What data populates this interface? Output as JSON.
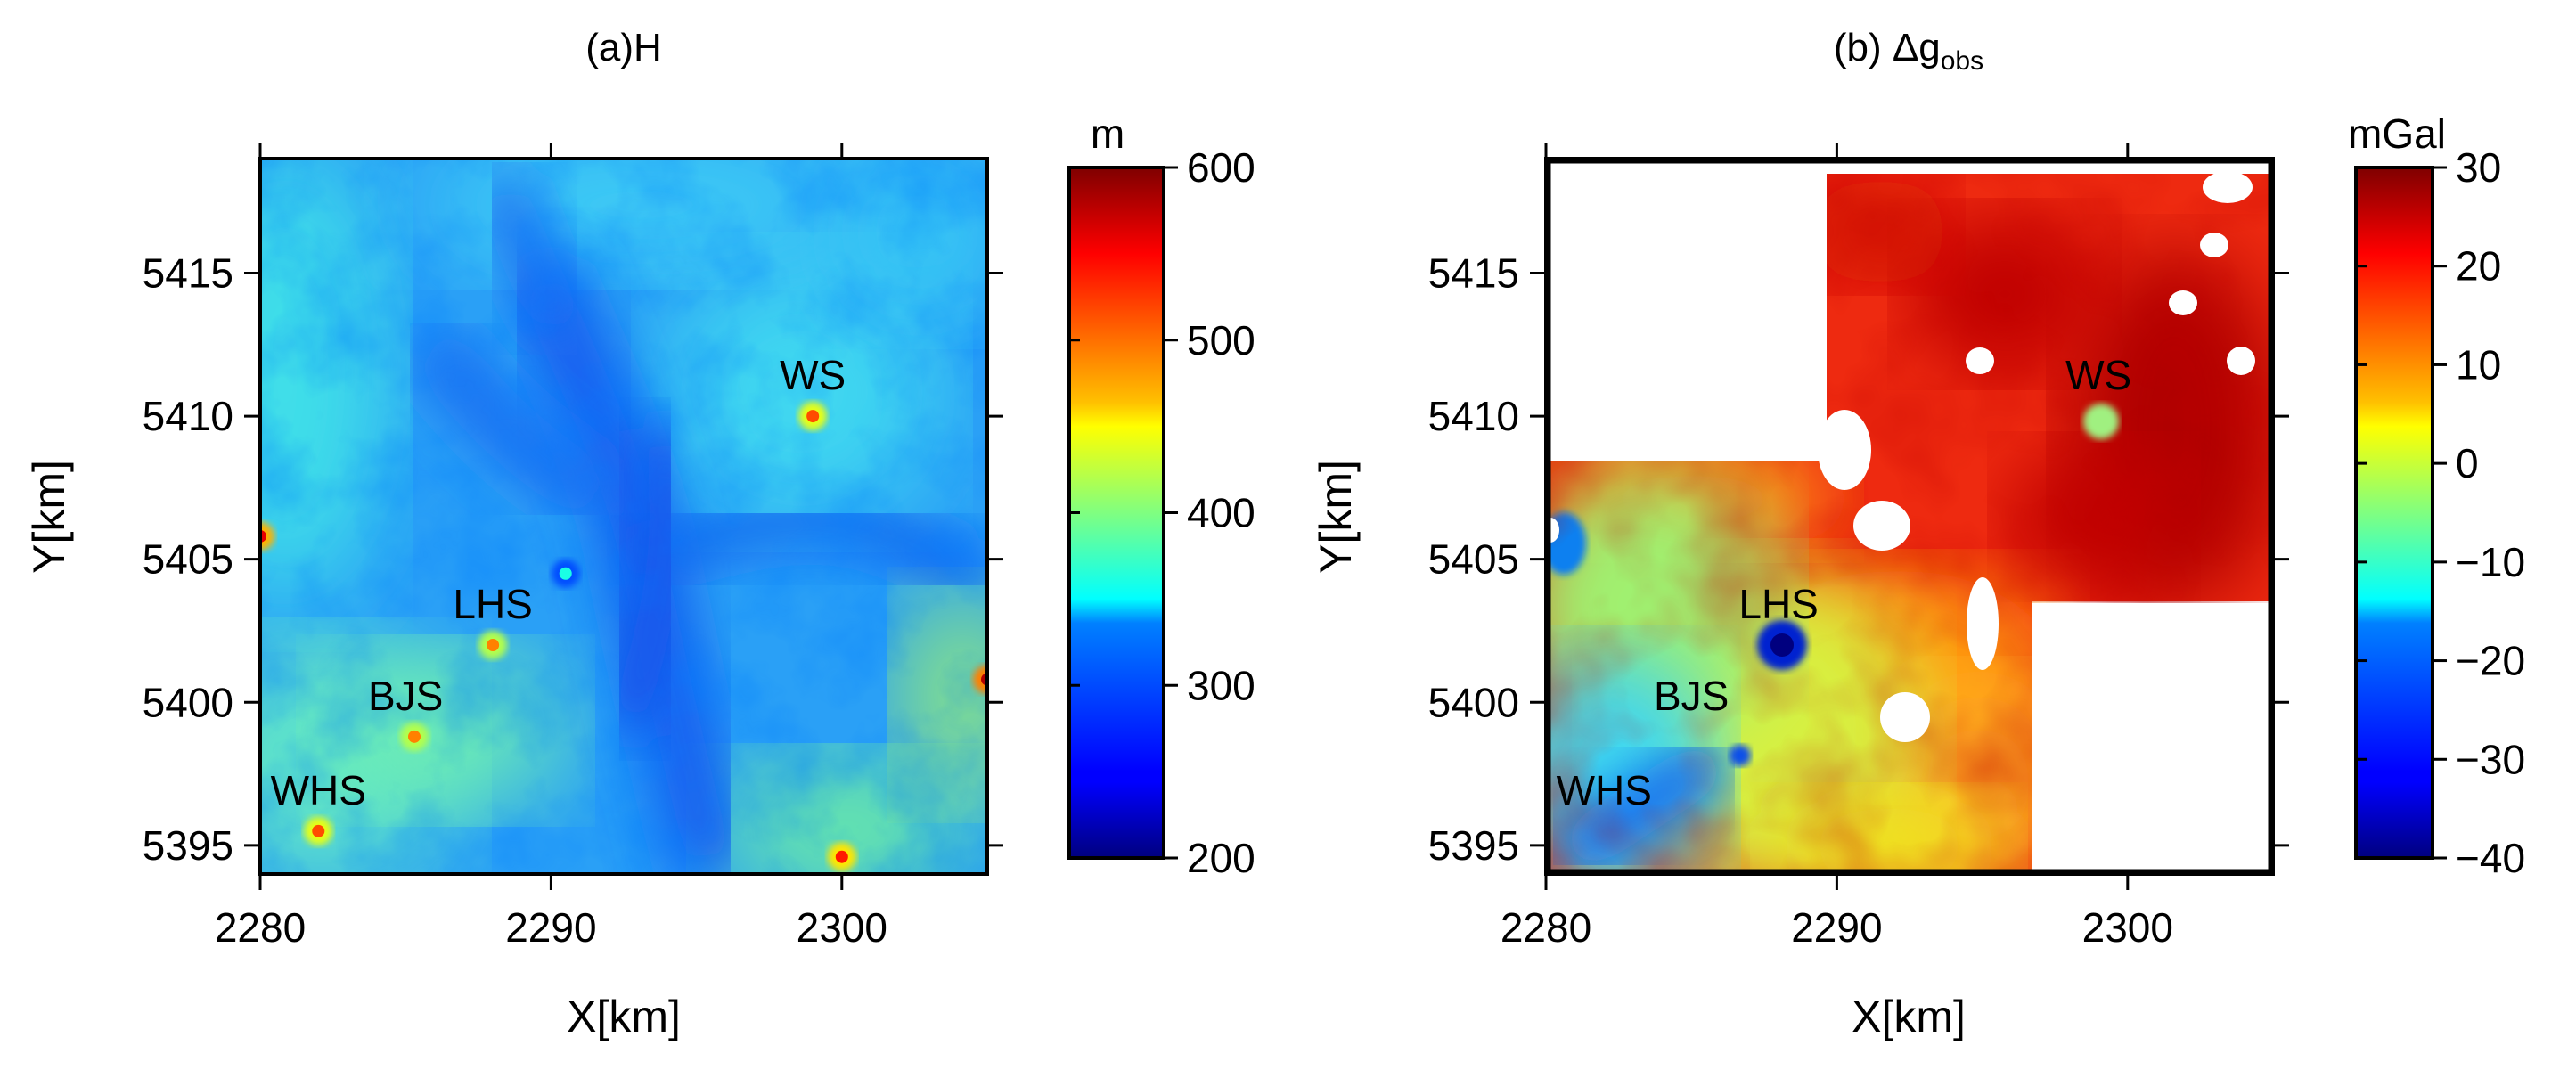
{
  "chart_data": [
    {
      "type": "heatmap",
      "panel_label": "(a)",
      "title": "H",
      "xlabel": "X[km]",
      "ylabel": "Y[km]",
      "xlim": [
        2280,
        2305
      ],
      "ylim": [
        5394,
        5419
      ],
      "xticks": [
        2280,
        2290,
        2300
      ],
      "yticks": [
        5395,
        5400,
        5405,
        5410,
        5415
      ],
      "colorbar": {
        "unit": "m",
        "range": [
          200,
          600
        ],
        "ticks": [
          200,
          300,
          400,
          500,
          600
        ]
      },
      "annotations": [
        {
          "text": "WS",
          "x": 2299,
          "y": 5410
        },
        {
          "text": "LHS",
          "x": 2288,
          "y": 5402
        },
        {
          "text": "BJS",
          "x": 2285,
          "y": 5398.8
        },
        {
          "text": "WHS",
          "x": 2282,
          "y": 5395.5
        }
      ],
      "features": [
        {
          "x": 2299,
          "y": 5410,
          "value": 520
        },
        {
          "x": 2288,
          "y": 5402,
          "value": 500
        },
        {
          "x": 2285.3,
          "y": 5398.8,
          "value": 500
        },
        {
          "x": 2282,
          "y": 5395.5,
          "value": 520
        },
        {
          "x": 2300,
          "y": 5394.6,
          "value": 540
        },
        {
          "x": 2280,
          "y": 5405.8,
          "value": 560
        },
        {
          "x": 2305,
          "y": 5400.8,
          "value": 580
        },
        {
          "x": 2290.5,
          "y": 5404.5,
          "value": 360
        }
      ]
    },
    {
      "type": "heatmap",
      "panel_label": "(b)",
      "title": "Δg",
      "title_subscript": "obs",
      "xlabel": "X[km]",
      "ylabel": "Y[km]",
      "xlim": [
        2280,
        2305
      ],
      "ylim": [
        5394,
        5419
      ],
      "xticks": [
        2280,
        2290,
        2300
      ],
      "yticks": [
        5395,
        5400,
        5405,
        5410,
        5415
      ],
      "colorbar": {
        "unit": "mGal",
        "range": [
          -40,
          30
        ],
        "ticks": [
          -40,
          -30,
          -20,
          -10,
          0,
          10,
          20,
          30
        ]
      },
      "annotations": [
        {
          "text": "WS",
          "x": 2299,
          "y": 5410
        },
        {
          "text": "LHS",
          "x": 2288,
          "y": 5402
        },
        {
          "text": "BJS",
          "x": 2285,
          "y": 5398.8
        },
        {
          "text": "WHS",
          "x": 2282,
          "y": 5395.5
        }
      ],
      "features": [
        {
          "x": 2288,
          "y": 5402,
          "value": -35
        },
        {
          "x": 2299,
          "y": 5410,
          "value": 0
        },
        {
          "x": 2281.5,
          "y": 5395.5,
          "value": -28
        },
        {
          "x": 2284,
          "y": 5397.5,
          "value": -24
        }
      ]
    }
  ]
}
